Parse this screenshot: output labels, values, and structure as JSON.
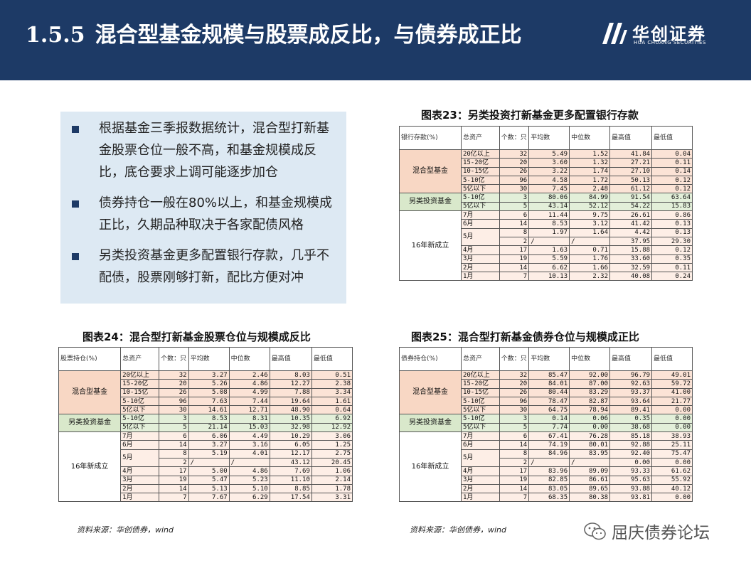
{
  "header": {
    "section_number": "1.5.5",
    "title": "混合型基金规模与股票成反比，与债券成正比",
    "logo_text": "华创证券",
    "logo_en": "HUA CHUANG SECURITIES"
  },
  "bullets": [
    "根据基金三季报数据统计，混合型打新基金股票仓位一般不高，和基金规模成反比，底仓要求上调可能逐步加仓",
    "债券持仓一般在80%以上，和基金规模成正比，久期品种取决于各家配债风格",
    "另类投资基金更多配置银行存款，几乎不配债，股票刚够打新，配比方便对冲"
  ],
  "tables": {
    "t23": {
      "caption": "图表23：另类投资打新基金更多配置银行存款",
      "headers": [
        "银行存款(%)",
        "总资产",
        "个数：只",
        "平均数",
        "中位数",
        "最高值",
        "最低值"
      ],
      "groups": [
        "混合型基金",
        "另类投资基金",
        "16年新成立"
      ],
      "rows": [
        [
          "20亿以上",
          "32",
          "5.49",
          "1.52",
          "41.84",
          "0.04"
        ],
        [
          "15-20亿",
          "20",
          "3.60",
          "1.32",
          "27.21",
          "0.11"
        ],
        [
          "10-15亿",
          "26",
          "3.22",
          "1.74",
          "27.10",
          "0.14"
        ],
        [
          "5-10亿",
          "96",
          "4.58",
          "1.72",
          "50.13",
          "0.12"
        ],
        [
          "5亿以下",
          "30",
          "7.45",
          "2.48",
          "61.12",
          "0.12"
        ],
        [
          "5-10亿",
          "3",
          "80.06",
          "84.99",
          "91.54",
          "63.64"
        ],
        [
          "5亿以下",
          "5",
          "43.14",
          "52.12",
          "54.22",
          "15.83"
        ],
        [
          "7月",
          "6",
          "11.44",
          "9.75",
          "26.61",
          "0.86"
        ],
        [
          "6月",
          "14",
          "8.53",
          "3.12",
          "41.42",
          "0.13"
        ],
        [
          "5月",
          "8",
          "1.97",
          "1.64",
          "4.42",
          "0.13"
        ],
        [
          "",
          "2",
          "/",
          "/",
          "37.95",
          "29.30"
        ],
        [
          "4月",
          "17",
          "1.63",
          "0.71",
          "15.88",
          "0.12"
        ],
        [
          "3月",
          "19",
          "5.59",
          "1.76",
          "33.60",
          "0.35"
        ],
        [
          "2月",
          "14",
          "6.62",
          "1.66",
          "32.59",
          "0.11"
        ],
        [
          "1月",
          "7",
          "10.13",
          "2.32",
          "40.08",
          "0.24"
        ]
      ]
    },
    "t24": {
      "caption": "图表24：混合型打新基金股票仓位与规模成反比",
      "source": "资料来源：华创债券，wind",
      "headers": [
        "股票持仓(%)",
        "总资产",
        "个数：只",
        "平均数",
        "中位数",
        "最高值",
        "最低值"
      ],
      "groups": [
        "混合型基金",
        "另类投资基金",
        "16年新成立"
      ],
      "rows": [
        [
          "20亿以上",
          "32",
          "3.27",
          "2.46",
          "8.03",
          "0.51"
        ],
        [
          "15-20亿",
          "20",
          "5.26",
          "4.86",
          "12.27",
          "2.38"
        ],
        [
          "10-15亿",
          "26",
          "5.08",
          "4.99",
          "7.88",
          "3.34"
        ],
        [
          "5-10亿",
          "96",
          "7.63",
          "7.44",
          "19.64",
          "1.61"
        ],
        [
          "5亿以下",
          "30",
          "14.61",
          "12.71",
          "48.90",
          "0.64"
        ],
        [
          "5-10亿",
          "3",
          "8.53",
          "8.31",
          "10.35",
          "6.92"
        ],
        [
          "5亿以下",
          "5",
          "21.14",
          "15.03",
          "32.98",
          "12.92"
        ],
        [
          "7月",
          "6",
          "6.06",
          "4.49",
          "10.29",
          "3.06"
        ],
        [
          "6月",
          "14",
          "3.27",
          "3.16",
          "6.05",
          "1.25"
        ],
        [
          "5月",
          "8",
          "5.19",
          "4.01",
          "12.17",
          "2.75"
        ],
        [
          "",
          "2",
          "/",
          "/",
          "43.12",
          "20.45"
        ],
        [
          "4月",
          "17",
          "5.00",
          "4.86",
          "7.69",
          "1.06"
        ],
        [
          "3月",
          "19",
          "5.47",
          "5.23",
          "11.10",
          "2.14"
        ],
        [
          "2月",
          "14",
          "5.13",
          "5.10",
          "8.85",
          "1.78"
        ],
        [
          "1月",
          "7",
          "7.67",
          "6.29",
          "17.54",
          "3.31"
        ]
      ]
    },
    "t25": {
      "caption": "图表25：混合型打新基金债券仓位与规模成正比",
      "source": "资料来源：华创债券，wind",
      "headers": [
        "债券持仓(%)",
        "总资产",
        "个数：只",
        "平均数",
        "中位数",
        "最高值",
        "最低值"
      ],
      "groups": [
        "混合型基金",
        "另类投资基金",
        "16年新成立"
      ],
      "rows": [
        [
          "20亿以上",
          "32",
          "85.47",
          "92.00",
          "96.79",
          "49.01"
        ],
        [
          "15-20亿",
          "20",
          "84.01",
          "87.00",
          "92.63",
          "59.72"
        ],
        [
          "10-15亿",
          "26",
          "80.44",
          "83.29",
          "93.37",
          "41.00"
        ],
        [
          "5-10亿",
          "96",
          "78.47",
          "82.87",
          "93.64",
          "21.77"
        ],
        [
          "5亿以下",
          "30",
          "64.75",
          "78.94",
          "89.41",
          "0.00"
        ],
        [
          "5-10亿",
          "3",
          "0.14",
          "0.06",
          "0.35",
          "0.00"
        ],
        [
          "5亿以下",
          "5",
          "7.74",
          "0.00",
          "38.68",
          "0.00"
        ],
        [
          "7月",
          "6",
          "67.41",
          "76.28",
          "85.18",
          "38.93"
        ],
        [
          "6月",
          "14",
          "74.19",
          "80.01",
          "92.88",
          "25.11"
        ],
        [
          "5月",
          "8",
          "84.96",
          "83.95",
          "92.40",
          "75.47"
        ],
        [
          "",
          "2",
          "/",
          "/",
          "0.00",
          "0.00"
        ],
        [
          "4月",
          "17",
          "83.96",
          "89.09",
          "93.33",
          "61.62"
        ],
        [
          "3月",
          "19",
          "82.85",
          "86.61",
          "95.63",
          "55.92"
        ],
        [
          "2月",
          "14",
          "83.05",
          "89.65",
          "93.88",
          "40.12"
        ],
        [
          "1月",
          "7",
          "68.35",
          "80.38",
          "93.81",
          "0.00"
        ]
      ]
    }
  },
  "watermark": "屈庆债券论坛",
  "colors": {
    "header_bg": "#1d3a66",
    "bullet_bg": "#dde9f3",
    "mix_row": "#fbe3d6",
    "alt_row": "#e3efd9"
  }
}
